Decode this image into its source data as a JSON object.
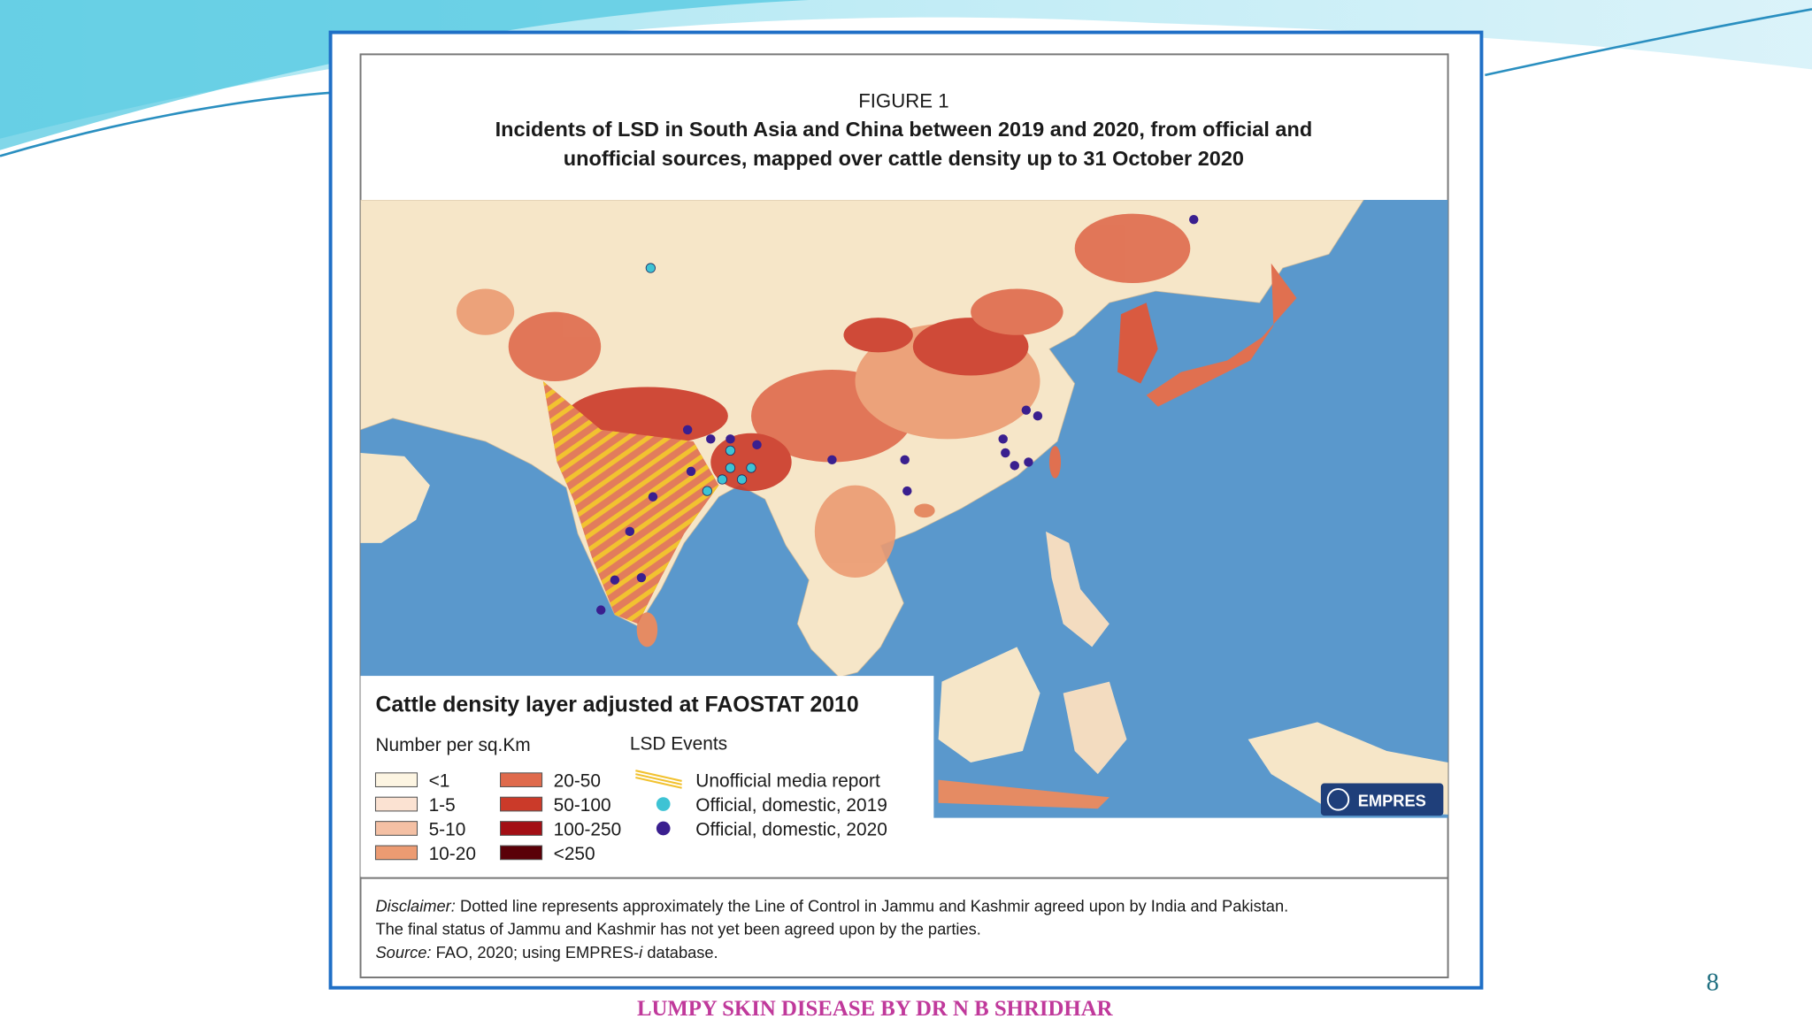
{
  "figure": {
    "label": "FIGURE 1",
    "title_lines": [
      "Incidents of LSD in South Asia and China between 2019 and 2020, from official and",
      "unofficial sources, mapped over cattle density up to 31 October 2020"
    ]
  },
  "legend": {
    "title": "Cattle density layer adjusted at FAOSTAT 2010",
    "density_header": "Number per sq.Km",
    "density_classes": [
      {
        "label": "<1",
        "color": "#fdf5e2"
      },
      {
        "label": "1-5",
        "color": "#fbe2d2"
      },
      {
        "label": "5-10",
        "color": "#f4c0a4"
      },
      {
        "label": "10-20",
        "color": "#ec9b72"
      },
      {
        "label": "20-50",
        "color": "#df6a4c"
      },
      {
        "label": "50-100",
        "color": "#cb3a29"
      },
      {
        "label": "100-250",
        "color": "#a30f15"
      },
      {
        "label": "<250",
        "color": "#5a0008"
      }
    ],
    "events_header": "LSD Events",
    "events": [
      {
        "label": "Unofficial media report",
        "color": "#f2c230"
      },
      {
        "label": "Official, domestic, 2019",
        "color": "#3ec3d4"
      },
      {
        "label": "Official, domestic, 2020",
        "color": "#3a1f8f"
      }
    ]
  },
  "logo": "EMPRES",
  "disclaimer": {
    "label": "Disclaimer:",
    "line1": "Dotted line represents approximately the Line of Control in Jammu and Kashmir agreed upon by India and Pakistan.",
    "line2": "The final status of Jammu and Kashmir has not yet been agreed upon by the parties."
  },
  "source": {
    "label": "Source:",
    "text": "FAO, 2020; using EMPRES-",
    "em": "i",
    "after": "database."
  },
  "footer": "LUMPY SKIN DISEASE BY DR N B SHRIDHAR",
  "page_number": "8"
}
